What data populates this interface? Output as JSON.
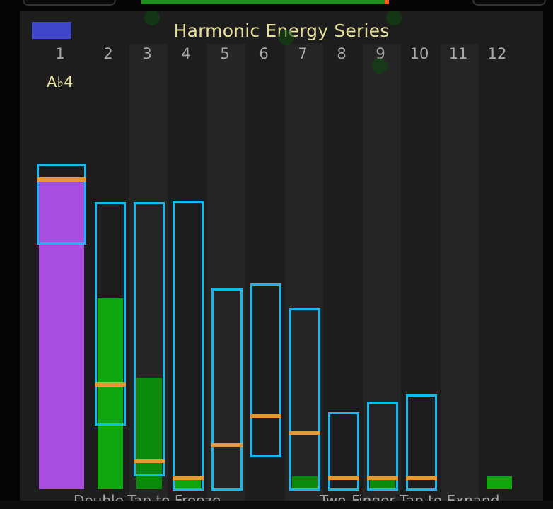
{
  "app": {
    "title": "Harmonic Energy Series",
    "note": "A♭4"
  },
  "harmonics": [
    {
      "number": "1"
    },
    {
      "number": "2"
    },
    {
      "number": "3"
    },
    {
      "number": "4"
    },
    {
      "number": "5"
    },
    {
      "number": "6"
    },
    {
      "number": "7"
    },
    {
      "number": "8"
    },
    {
      "number": "9"
    },
    {
      "number": "10"
    },
    {
      "number": "11"
    },
    {
      "number": "12"
    }
  ],
  "hints": {
    "freeze": "Double-Tap to Freeze",
    "expand": "Two-Finger Tap to Expand"
  },
  "colors": {
    "fundamental": "#a84de0",
    "harmonic": "#0ea50e",
    "harmonic_dim": "#0a8a0a",
    "range_box": "#15b9ef",
    "peak_marker": "#e39a35",
    "series_swatch": "#3f47c8",
    "title_text": "#e6e19a"
  }
}
